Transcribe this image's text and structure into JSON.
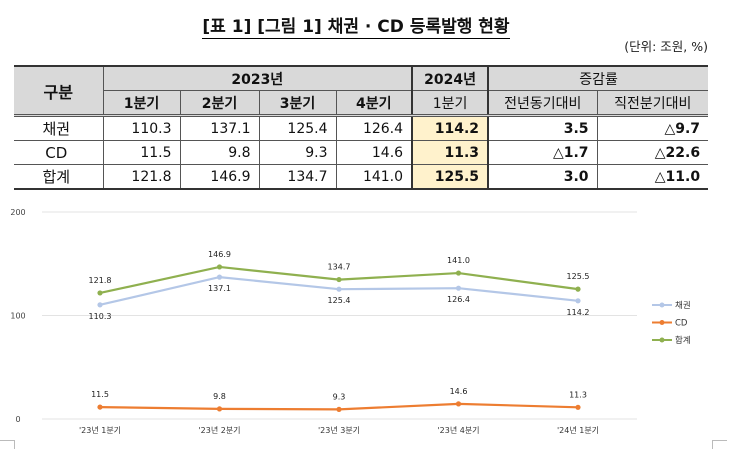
{
  "title": "[표 1] [그림 1] 채권 · CD 등록발행 현황",
  "unit": "(단위: 조원, %)",
  "table": {
    "header_group": "구분",
    "year2023": "2023년",
    "year2024": "2024년",
    "change": "증감률",
    "subheaders": [
      "1분기",
      "2분기",
      "3분기",
      "4분기",
      "1분기",
      "전년동기대비",
      "직전분기대비"
    ],
    "rows": [
      {
        "label": "채권",
        "values": [
          "110.3",
          "137.1",
          "125.4",
          "126.4",
          "114.2",
          "3.5",
          "△9.7"
        ]
      },
      {
        "label": "CD",
        "values": [
          "11.5",
          "9.8",
          "9.3",
          "14.6",
          "11.3",
          "△1.7",
          "△22.6"
        ]
      },
      {
        "label": "합계",
        "values": [
          "121.8",
          "146.9",
          "134.7",
          "141.0",
          "125.5",
          "3.0",
          "△11.0"
        ]
      }
    ]
  },
  "chart_data": {
    "type": "line",
    "categories": [
      "'23년 1분기",
      "'23년 2분기",
      "'23년 3분기",
      "'23년 4분기",
      "'24년 1분기"
    ],
    "series": [
      {
        "name": "채권",
        "values": [
          110.3,
          137.1,
          125.4,
          126.4,
          114.2
        ],
        "color": "#b4c7e7"
      },
      {
        "name": "CD",
        "values": [
          11.5,
          9.8,
          9.3,
          14.6,
          11.3
        ],
        "color": "#ed7d31"
      },
      {
        "name": "합계",
        "values": [
          121.8,
          146.9,
          134.7,
          141.0,
          125.5
        ],
        "color": "#8fb04f"
      }
    ],
    "ylim": [
      0,
      200
    ],
    "yticks": [
      "0",
      "100",
      "200"
    ],
    "grid": true,
    "legend": "right",
    "colors": {
      "header_bg": "#d9d9d9",
      "highlight": "#fff2cc"
    }
  }
}
